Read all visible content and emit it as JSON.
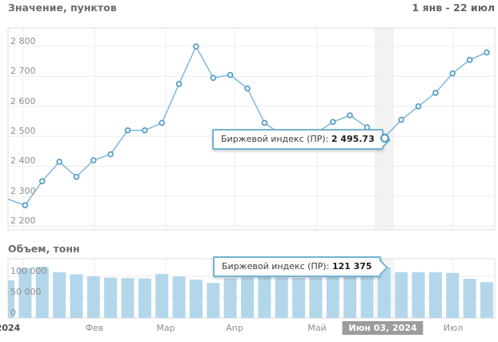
{
  "header": {
    "title": "Значение, пунктов",
    "date_range": "1 янв - 22 июл"
  },
  "volume_header": {
    "title": "Объем, тонн"
  },
  "tooltips": {
    "line": {
      "label": "Биржевой индекс (ПР):",
      "value": "2 495.73"
    },
    "volume": {
      "label": "Биржевой индекс (ПР):",
      "value": "121 375"
    }
  },
  "x_axis": {
    "labels": [
      "2024",
      "Фев",
      "Мар",
      "Апр",
      "Май",
      "Июл"
    ],
    "selected_label": "Июн 03, 2024"
  },
  "colors": {
    "line": "#7db9da",
    "marker_stroke": "#4796c4",
    "marker_fill": "#edf6fb",
    "bar_fill": "#b3d7ea",
    "tooltip_border": "#74b2d2",
    "badge_bg": "#9c9c9c",
    "highlight_band": "#f2f2f2",
    "grid": "#ececec",
    "plot_border": "#dcdcdc"
  },
  "chart_data": [
    {
      "type": "line",
      "title": "Значение, пунктов",
      "ylabel": "пунктов",
      "ylim": [
        2200,
        2873
      ],
      "grid": true,
      "yticks": [
        2800,
        2700,
        2600,
        2500,
        2400,
        2300,
        2200
      ],
      "ytick_labels": [
        "2 800",
        "2 700",
        "2 600",
        "2 500",
        "2 400",
        "2 300",
        "2 200"
      ],
      "x_range": "1 янв - 22 июл, weekly",
      "values": [
        2290,
        2270,
        2350,
        2415,
        2365,
        2420,
        2440,
        2520,
        2520,
        2545,
        2675,
        2800,
        2695,
        2705,
        2660,
        2545,
        2505,
        2490,
        2510,
        2548,
        2570,
        2530,
        2495.73,
        2555,
        2600,
        2645,
        2710,
        2755,
        2780
      ],
      "selected_index": 22,
      "selected_value": 2495.73,
      "selected_date": "Июн 03, 2024"
    },
    {
      "type": "bar",
      "title": "Объем, тонн",
      "ylabel": "тонн",
      "ylim": [
        0,
        142000
      ],
      "grid": true,
      "yticks": [
        100000,
        50000,
        0
      ],
      "ytick_labels": [
        "100 000",
        "50 000",
        "0"
      ],
      "x_range": "1 янв - 22 июл, weekly",
      "values": [
        90000,
        120000,
        123000,
        110000,
        105000,
        100000,
        97000,
        96000,
        95000,
        106000,
        100000,
        92000,
        84000,
        95000,
        97000,
        98000,
        97000,
        96000,
        97000,
        98000,
        99000,
        100000,
        121375,
        110000,
        110000,
        110000,
        108000,
        94000,
        86000
      ],
      "selected_index": 22,
      "selected_value": 121375,
      "selected_date": "Июн 03, 2024"
    }
  ]
}
